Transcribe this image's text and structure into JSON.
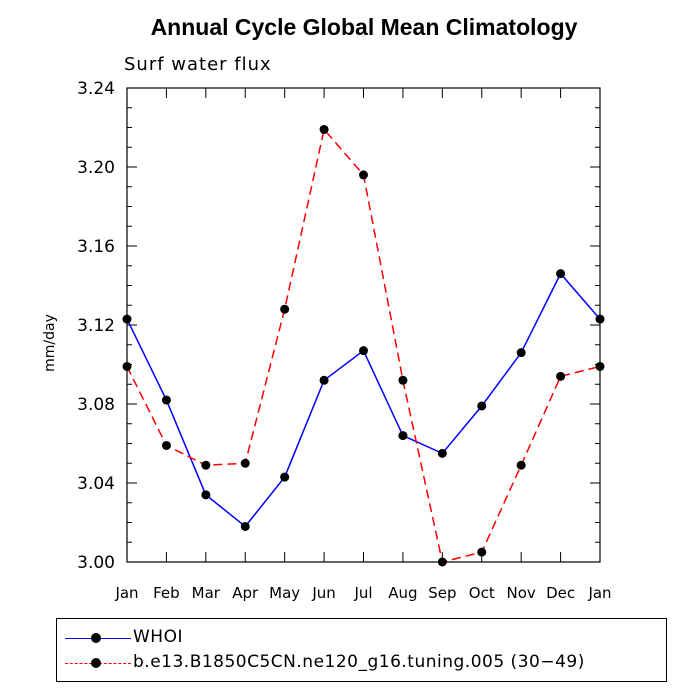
{
  "chart_data": {
    "type": "line",
    "title": "Annual Cycle Global Mean Climatology",
    "subtitle": "Surf water flux",
    "ylabel": "mm/day",
    "xlabel": "",
    "categories": [
      "Jan",
      "Feb",
      "Mar",
      "Apr",
      "May",
      "Jun",
      "Jul",
      "Aug",
      "Sep",
      "Oct",
      "Nov",
      "Dec",
      "Jan"
    ],
    "ylim": [
      3.0,
      3.24
    ],
    "yticks": [
      "3.00",
      "3.04",
      "3.08",
      "3.12",
      "3.16",
      "3.20",
      "3.24"
    ],
    "series": [
      {
        "name": "WHOI",
        "color": "#0000ff",
        "dash": "solid",
        "values": [
          3.123,
          3.082,
          3.034,
          3.018,
          3.043,
          3.092,
          3.107,
          3.064,
          3.055,
          3.079,
          3.106,
          3.146,
          3.123
        ]
      },
      {
        "name": "b.e13.B1850C5CN.ne120_g16.tuning.005 (30−49)",
        "color": "#ff0000",
        "dash": "dashed",
        "values": [
          3.099,
          3.059,
          3.049,
          3.05,
          3.128,
          3.219,
          3.196,
          3.092,
          3.0,
          3.005,
          3.049,
          3.094,
          3.099
        ]
      }
    ],
    "legend_position": "bottom"
  }
}
